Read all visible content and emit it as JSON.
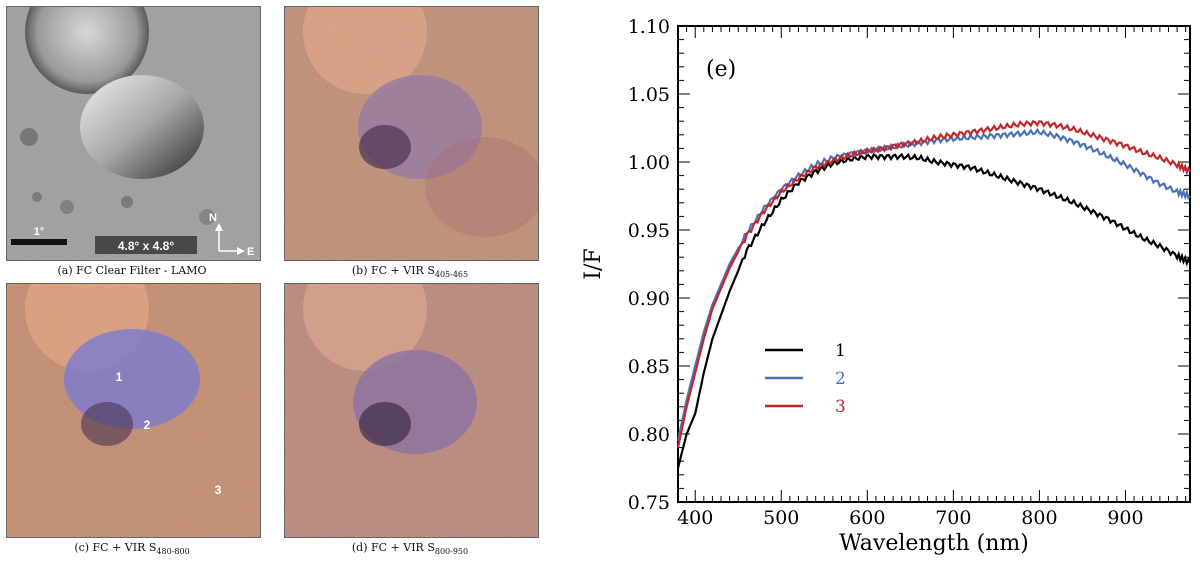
{
  "panels": [
    {
      "id": "a",
      "caption": "(a) FC Clear Filter - LAMO",
      "sub": "",
      "style": "gray",
      "scale_label": "1°",
      "extent_label": "4.8° x 4.8°",
      "north": "N",
      "east": "E"
    },
    {
      "id": "b",
      "caption": "(b) FC + VIR S",
      "sub": "405-465",
      "style": "color_b"
    },
    {
      "id": "c",
      "caption": "(c) FC + VIR S",
      "sub": "480-800",
      "style": "color_c",
      "markers": [
        "1",
        "2",
        "3"
      ]
    },
    {
      "id": "d",
      "caption": "(d) FC + VIR S",
      "sub": "800-950",
      "style": "color_d"
    }
  ],
  "chart_data": {
    "type": "line",
    "panel_label": "(e)",
    "xlabel": "Wavelength (nm)",
    "ylabel": "I/F",
    "xlim": [
      380,
      975
    ],
    "ylim": [
      0.75,
      1.1
    ],
    "xticks": [
      400,
      500,
      600,
      700,
      800,
      900
    ],
    "yticks": [
      0.75,
      0.8,
      0.85,
      0.9,
      0.95,
      1.0,
      1.05,
      1.1
    ],
    "ytick_labels": [
      "0.75",
      "0.80",
      "0.85",
      "0.90",
      "0.95",
      "1.00",
      "1.05",
      "1.10"
    ],
    "legend_position": "center-left",
    "series": [
      {
        "name": "1",
        "color": "#000000",
        "x": [
          380,
          390,
          400,
          410,
          420,
          440,
          460,
          480,
          500,
          520,
          540,
          560,
          580,
          600,
          620,
          640,
          660,
          680,
          700,
          720,
          740,
          760,
          780,
          800,
          820,
          840,
          860,
          880,
          900,
          920,
          940,
          960,
          975
        ],
        "y": [
          0.775,
          0.8,
          0.815,
          0.845,
          0.87,
          0.905,
          0.935,
          0.955,
          0.972,
          0.985,
          0.993,
          0.999,
          1.002,
          1.004,
          1.004,
          1.004,
          1.003,
          1.0,
          0.998,
          0.996,
          0.992,
          0.988,
          0.984,
          0.98,
          0.975,
          0.97,
          0.964,
          0.958,
          0.951,
          0.944,
          0.938,
          0.931,
          0.926
        ]
      },
      {
        "name": "2",
        "color": "#4a72b8",
        "x": [
          380,
          390,
          400,
          410,
          420,
          440,
          460,
          480,
          500,
          520,
          540,
          560,
          580,
          600,
          620,
          640,
          660,
          680,
          700,
          720,
          740,
          760,
          780,
          800,
          820,
          840,
          860,
          880,
          900,
          920,
          940,
          960,
          975
        ],
        "y": [
          0.795,
          0.825,
          0.85,
          0.875,
          0.895,
          0.925,
          0.948,
          0.966,
          0.98,
          0.99,
          0.998,
          1.003,
          1.006,
          1.008,
          1.01,
          1.012,
          1.014,
          1.016,
          1.017,
          1.018,
          1.019,
          1.02,
          1.021,
          1.022,
          1.019,
          1.015,
          1.01,
          1.004,
          0.998,
          0.991,
          0.984,
          0.978,
          0.975
        ]
      },
      {
        "name": "3",
        "color": "#c0282d",
        "x": [
          380,
          390,
          400,
          410,
          420,
          440,
          460,
          480,
          500,
          520,
          540,
          560,
          580,
          600,
          620,
          640,
          660,
          680,
          700,
          720,
          740,
          760,
          780,
          800,
          820,
          840,
          860,
          880,
          900,
          920,
          940,
          960,
          975
        ],
        "y": [
          0.79,
          0.82,
          0.845,
          0.87,
          0.892,
          0.922,
          0.946,
          0.964,
          0.978,
          0.988,
          0.996,
          1.001,
          1.005,
          1.008,
          1.01,
          1.013,
          1.015,
          1.018,
          1.02,
          1.022,
          1.024,
          1.026,
          1.028,
          1.029,
          1.027,
          1.024,
          1.02,
          1.016,
          1.012,
          1.007,
          1.003,
          0.998,
          0.993
        ]
      }
    ]
  }
}
